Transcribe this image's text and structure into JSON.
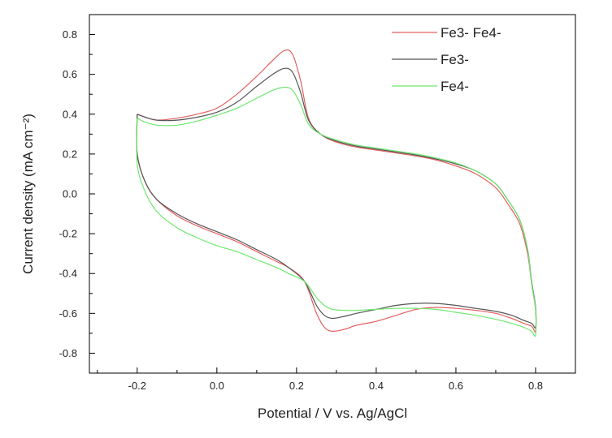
{
  "chart_data": {
    "type": "line",
    "xlabel": "Potential / V vs. Ag/AgCl",
    "ylabel": "Current density (mA cm⁻²)",
    "xlim": [
      -0.32,
      0.9
    ],
    "ylim": [
      -0.9,
      0.9
    ],
    "x_ticks": [
      -0.2,
      0.0,
      0.2,
      0.4,
      0.6,
      0.8
    ],
    "x_tick_labels": [
      "-0.2",
      "0.0",
      "0.2",
      "0.4",
      "0.6",
      "0.8"
    ],
    "y_ticks": [
      -0.8,
      -0.6,
      -0.4,
      -0.2,
      0.0,
      0.2,
      0.4,
      0.6,
      0.8
    ],
    "y_tick_labels": [
      "-0.8",
      "-0.6",
      "-0.4",
      "-0.2",
      "0.0",
      "0.2",
      "0.4",
      "0.6",
      "0.8"
    ],
    "grid": false,
    "legend_position": "top-right",
    "series": [
      {
        "name": "Fe3- Fe4-",
        "color": "#e35f5f",
        "x": [
          -0.2,
          -0.18,
          -0.15,
          -0.1,
          -0.05,
          0.0,
          0.05,
          0.1,
          0.14,
          0.17,
          0.19,
          0.21,
          0.23,
          0.26,
          0.3,
          0.35,
          0.4,
          0.45,
          0.5,
          0.55,
          0.6,
          0.65,
          0.7,
          0.73,
          0.76,
          0.78,
          0.79,
          0.8,
          0.8,
          0.79,
          0.77,
          0.74,
          0.7,
          0.65,
          0.6,
          0.55,
          0.5,
          0.45,
          0.4,
          0.35,
          0.32,
          0.29,
          0.27,
          0.25,
          0.22,
          0.18,
          0.15,
          0.1,
          0.05,
          0.0,
          -0.05,
          -0.1,
          -0.15,
          -0.18,
          -0.2,
          -0.2
        ],
        "y": [
          0.4,
          0.385,
          0.37,
          0.38,
          0.4,
          0.43,
          0.5,
          0.59,
          0.67,
          0.72,
          0.7,
          0.57,
          0.38,
          0.3,
          0.26,
          0.235,
          0.22,
          0.205,
          0.19,
          0.17,
          0.14,
          0.1,
          0.03,
          -0.05,
          -0.15,
          -0.3,
          -0.45,
          -0.58,
          -0.69,
          -0.665,
          -0.65,
          -0.625,
          -0.6,
          -0.585,
          -0.575,
          -0.57,
          -0.58,
          -0.61,
          -0.64,
          -0.66,
          -0.68,
          -0.69,
          -0.67,
          -0.6,
          -0.44,
          -0.37,
          -0.34,
          -0.29,
          -0.24,
          -0.2,
          -0.16,
          -0.11,
          -0.03,
          0.06,
          0.2,
          0.4
        ]
      },
      {
        "name": "Fe3-",
        "color": "#555555",
        "x": [
          -0.2,
          -0.18,
          -0.15,
          -0.1,
          -0.05,
          0.0,
          0.05,
          0.1,
          0.14,
          0.17,
          0.19,
          0.21,
          0.23,
          0.26,
          0.3,
          0.35,
          0.4,
          0.45,
          0.5,
          0.55,
          0.6,
          0.65,
          0.7,
          0.73,
          0.76,
          0.78,
          0.79,
          0.8,
          0.8,
          0.79,
          0.77,
          0.74,
          0.7,
          0.65,
          0.6,
          0.55,
          0.5,
          0.45,
          0.4,
          0.35,
          0.32,
          0.29,
          0.27,
          0.25,
          0.22,
          0.18,
          0.15,
          0.1,
          0.05,
          0.0,
          -0.05,
          -0.1,
          -0.15,
          -0.18,
          -0.2,
          -0.2
        ],
        "y": [
          0.4,
          0.385,
          0.37,
          0.37,
          0.385,
          0.41,
          0.46,
          0.54,
          0.6,
          0.63,
          0.61,
          0.51,
          0.37,
          0.3,
          0.265,
          0.24,
          0.225,
          0.21,
          0.195,
          0.175,
          0.15,
          0.115,
          0.05,
          -0.03,
          -0.13,
          -0.28,
          -0.44,
          -0.57,
          -0.67,
          -0.65,
          -0.635,
          -0.61,
          -0.59,
          -0.575,
          -0.56,
          -0.55,
          -0.55,
          -0.56,
          -0.58,
          -0.6,
          -0.615,
          -0.625,
          -0.61,
          -0.56,
          -0.44,
          -0.37,
          -0.33,
          -0.28,
          -0.23,
          -0.19,
          -0.15,
          -0.1,
          -0.03,
          0.06,
          0.2,
          0.4
        ]
      },
      {
        "name": "Fe4-",
        "color": "#6ee86e",
        "x": [
          -0.2,
          -0.18,
          -0.15,
          -0.1,
          -0.05,
          0.0,
          0.05,
          0.1,
          0.14,
          0.17,
          0.19,
          0.21,
          0.23,
          0.26,
          0.3,
          0.35,
          0.4,
          0.45,
          0.5,
          0.55,
          0.6,
          0.65,
          0.7,
          0.73,
          0.76,
          0.78,
          0.79,
          0.8,
          0.8,
          0.79,
          0.77,
          0.74,
          0.7,
          0.65,
          0.6,
          0.55,
          0.5,
          0.45,
          0.4,
          0.35,
          0.32,
          0.29,
          0.27,
          0.25,
          0.22,
          0.18,
          0.15,
          0.1,
          0.05,
          0.0,
          -0.05,
          -0.1,
          -0.15,
          -0.18,
          -0.2,
          -0.2
        ],
        "y": [
          0.38,
          0.36,
          0.345,
          0.345,
          0.365,
          0.395,
          0.43,
          0.48,
          0.52,
          0.535,
          0.52,
          0.45,
          0.35,
          0.3,
          0.27,
          0.245,
          0.23,
          0.215,
          0.2,
          0.18,
          0.155,
          0.115,
          0.05,
          -0.03,
          -0.13,
          -0.28,
          -0.45,
          -0.58,
          -0.71,
          -0.69,
          -0.67,
          -0.65,
          -0.63,
          -0.61,
          -0.595,
          -0.58,
          -0.575,
          -0.575,
          -0.58,
          -0.585,
          -0.585,
          -0.58,
          -0.56,
          -0.52,
          -0.44,
          -0.4,
          -0.37,
          -0.33,
          -0.29,
          -0.26,
          -0.22,
          -0.17,
          -0.09,
          0.01,
          0.15,
          0.38
        ]
      }
    ]
  }
}
